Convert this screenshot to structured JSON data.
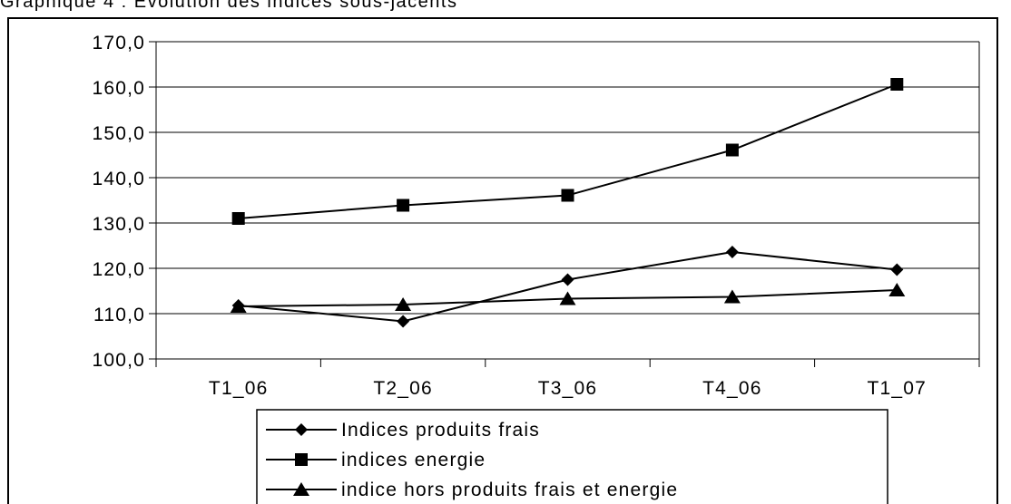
{
  "caption": "Graphique 4 : Evolution des indices sous-jacents",
  "chart_data": {
    "type": "line",
    "categories": [
      "T1_06",
      "T2_06",
      "T3_06",
      "T4_06",
      "T1_07"
    ],
    "ylim": [
      100,
      170
    ],
    "yticks": [
      "100,0",
      "110,0",
      "120,0",
      "130,0",
      "140,0",
      "150,0",
      "160,0",
      "170,0"
    ],
    "grid": true,
    "legend_position": "bottom",
    "series": [
      {
        "name": "Indices produits frais",
        "marker": "diamond",
        "color": "#000000",
        "values": [
          111.8,
          108.3,
          117.5,
          123.6,
          119.7
        ]
      },
      {
        "name": "indices energie",
        "marker": "square",
        "color": "#000000",
        "values": [
          131.0,
          133.9,
          136.1,
          146.1,
          160.6
        ]
      },
      {
        "name": "indice hors produits frais et energie",
        "marker": "triangle",
        "color": "#000000",
        "values": [
          111.6,
          112.0,
          113.3,
          113.7,
          115.2
        ]
      }
    ]
  }
}
